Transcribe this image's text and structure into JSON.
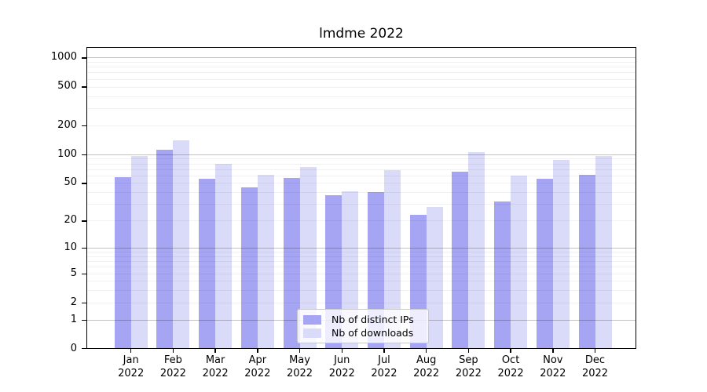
{
  "chart_data": {
    "type": "bar",
    "title": "lmdme 2022",
    "categories": [
      "Jan 2022",
      "Feb 2022",
      "Mar 2022",
      "Apr 2022",
      "May 2022",
      "Jun 2022",
      "Jul 2022",
      "Aug 2022",
      "Sep 2022",
      "Oct 2022",
      "Nov 2022",
      "Dec 2022"
    ],
    "series": [
      {
        "name": "Nb of distinct IPs",
        "color": "#a5a5f4",
        "values": [
          58,
          112,
          55,
          45,
          56,
          37,
          40,
          23,
          66,
          32,
          55,
          61
        ]
      },
      {
        "name": "Nb of downloads",
        "color": "#dadaf9",
        "values": [
          95,
          138,
          80,
          61,
          73,
          41,
          68,
          28,
          105,
          60,
          87,
          96
        ]
      }
    ],
    "y_axis": {
      "scale": "log10(value+1)",
      "tick_values": [
        0,
        1,
        2,
        5,
        10,
        20,
        50,
        100,
        200,
        500,
        1000
      ],
      "tick_labels": [
        "0",
        "1",
        "2",
        "5",
        "10",
        "20",
        "50",
        "100",
        "200",
        "500",
        "1000"
      ],
      "major_gridlines": [
        1,
        10,
        100,
        1000
      ],
      "minor_gridlines": [
        2,
        3,
        4,
        5,
        6,
        7,
        8,
        9,
        20,
        30,
        40,
        50,
        60,
        70,
        80,
        90,
        200,
        300,
        400,
        500,
        600,
        700,
        800,
        900
      ],
      "ylim": [
        0,
        1300
      ]
    },
    "legend": {
      "position": "inside-bottom-center"
    },
    "grid": true,
    "axis_color": "#000000",
    "background_color": "#ffffff"
  }
}
